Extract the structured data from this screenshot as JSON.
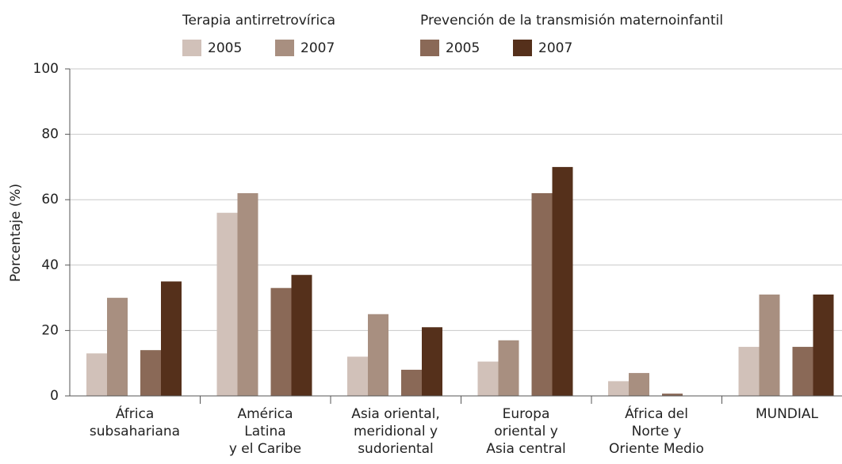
{
  "chart_data": {
    "type": "bar",
    "legend_titles": [
      "Terapia antirretrovírica",
      "Prevención de la transmisión maternoinfantil"
    ],
    "y_label": "Porcentaje (%)",
    "categories": [
      "África\nsubsahariana",
      "América\nLatina\ny el Caribe",
      "Asia oriental,\nmeridional y\nsudoriental",
      "Europa\noriental y\nAsia central",
      "África del\nNorte y\nOriente Medio",
      "MUNDIAL"
    ],
    "series": [
      {
        "name": "2005",
        "color": "#d1c1b9",
        "values": [
          13,
          56,
          12,
          10.5,
          4.5,
          15
        ]
      },
      {
        "name": "2007",
        "color": "#a88f80",
        "values": [
          30,
          62,
          25,
          17,
          7,
          31
        ]
      },
      {
        "name": "2005",
        "color": "#8a6957",
        "values": [
          14,
          33,
          8,
          62,
          0.7,
          15
        ]
      },
      {
        "name": "2007",
        "color": "#55301b",
        "values": [
          35,
          37,
          21,
          70,
          0,
          31
        ]
      }
    ],
    "ylim": [
      0,
      100
    ],
    "yticks": [
      0,
      20,
      40,
      60,
      80,
      100
    ],
    "grid": true
  }
}
